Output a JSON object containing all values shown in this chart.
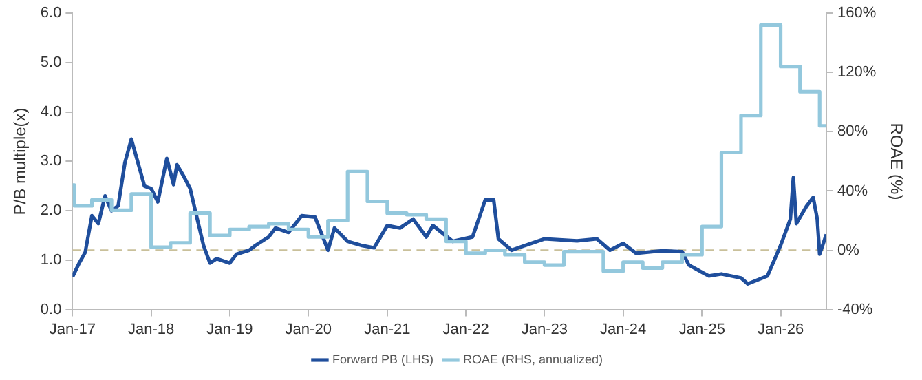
{
  "chart_data": {
    "type": "line",
    "ylabel": "P/B multiple(x)",
    "y2label": "ROAE (%)",
    "xlim": [
      "2017-01",
      "2026-08"
    ],
    "xticks": [
      {
        "value": "2017-01",
        "label": "Jan-17"
      },
      {
        "value": "2018-01",
        "label": "Jan-18"
      },
      {
        "value": "2019-01",
        "label": "Jan-19"
      },
      {
        "value": "2020-01",
        "label": "Jan-20"
      },
      {
        "value": "2021-01",
        "label": "Jan-21"
      },
      {
        "value": "2022-01",
        "label": "Jan-22"
      },
      {
        "value": "2023-01",
        "label": "Jan-23"
      },
      {
        "value": "2024-01",
        "label": "Jan-24"
      },
      {
        "value": "2025-01",
        "label": "Jan-25"
      },
      {
        "value": "2026-01",
        "label": "Jan-26"
      }
    ],
    "ylim": [
      0,
      6
    ],
    "yticks": [
      {
        "value": 0,
        "label": "0.0"
      },
      {
        "value": 1,
        "label": "1.0"
      },
      {
        "value": 2,
        "label": "2.0"
      },
      {
        "value": 3,
        "label": "3.0"
      },
      {
        "value": 4,
        "label": "4.0"
      },
      {
        "value": 5,
        "label": "5.0"
      },
      {
        "value": 6,
        "label": "6.0"
      }
    ],
    "y2lim": [
      -40,
      160
    ],
    "y2ticks": [
      {
        "value": -40,
        "label": "-40%"
      },
      {
        "value": 0,
        "label": "0%"
      },
      {
        "value": 40,
        "label": "40%"
      },
      {
        "value": 80,
        "label": "80%"
      },
      {
        "value": 120,
        "label": "120%"
      },
      {
        "value": 160,
        "label": "160%"
      }
    ],
    "series": [
      {
        "name": "Forward PB (LHS)",
        "type": "line",
        "color": "#1f4e9c",
        "x": [
          "2017-01",
          "2017-02",
          "2017-03",
          "2017-04",
          "2017-05",
          "2017-06",
          "2017-07",
          "2017-08",
          "2017-09",
          "2017-10",
          "2017-11",
          "2017-12",
          "2018-01",
          "2018-02",
          "2018-03-15",
          "2018-04-15",
          "2018-05",
          "2018-06",
          "2018-07",
          "2018-08",
          "2018-09",
          "2018-10",
          "2018-11",
          "2019-01",
          "2019-02",
          "2019-04",
          "2019-05",
          "2019-07",
          "2019-08",
          "2019-10",
          "2019-12",
          "2020-02",
          "2020-04",
          "2020-05",
          "2020-07",
          "2020-09",
          "2020-11",
          "2021-01",
          "2021-03",
          "2021-05",
          "2021-07",
          "2021-08",
          "2021-11",
          "2022-02",
          "2022-04",
          "2022-05-10",
          "2022-06",
          "2022-08",
          "2022-11",
          "2023-01",
          "2023-06",
          "2023-09",
          "2023-11",
          "2024-01",
          "2024-03",
          "2024-07",
          "2024-10",
          "2024-11",
          "2025-02",
          "2025-04",
          "2025-07",
          "2025-08",
          "2025-11",
          "2026-01",
          "2026-02-15",
          "2026-03-01",
          "2026-03-15",
          "2026-05",
          "2026-06",
          "2026-06-20",
          "2026-07",
          "2026-08"
        ],
        "values": [
          0.66,
          0.94,
          1.16,
          1.9,
          1.74,
          2.3,
          2.0,
          2.1,
          2.97,
          3.45,
          2.97,
          2.5,
          2.45,
          2.18,
          3.06,
          2.53,
          2.93,
          2.7,
          2.45,
          1.87,
          1.3,
          0.94,
          1.03,
          0.94,
          1.12,
          1.2,
          1.3,
          1.47,
          1.65,
          1.56,
          1.9,
          1.87,
          1.2,
          1.65,
          1.38,
          1.3,
          1.25,
          1.7,
          1.65,
          1.83,
          1.47,
          1.7,
          1.38,
          1.47,
          2.22,
          2.22,
          1.43,
          1.2,
          1.34,
          1.43,
          1.39,
          1.43,
          1.2,
          1.34,
          1.14,
          1.19,
          1.17,
          0.9,
          0.68,
          0.72,
          0.64,
          0.52,
          0.68,
          1.3,
          1.83,
          2.67,
          1.74,
          2.09,
          2.27,
          1.83,
          1.12,
          1.52
        ]
      },
      {
        "name": "ROAE (RHS, annualized)",
        "type": "step",
        "axis": "y2",
        "color": "#93c8dd",
        "x": [
          "2017-01",
          "2017-01-10",
          "2017-04",
          "2017-07",
          "2017-10",
          "2018-01",
          "2018-04",
          "2018-07",
          "2018-10",
          "2019-01",
          "2019-04",
          "2019-07",
          "2019-10",
          "2020-01",
          "2020-04",
          "2020-07",
          "2020-10",
          "2021-01",
          "2021-04",
          "2021-07",
          "2021-10",
          "2022-01",
          "2022-04",
          "2022-07",
          "2022-10",
          "2023-01",
          "2023-04",
          "2023-10",
          "2024-01",
          "2024-04",
          "2024-07",
          "2024-10",
          "2025-01",
          "2025-04",
          "2025-07",
          "2025-10",
          "2026-01",
          "2026-04",
          "2026-07",
          "2026-08"
        ],
        "values": [
          44,
          30,
          34,
          27,
          38,
          2,
          5,
          25,
          10,
          14,
          16,
          18,
          14,
          9,
          20,
          53,
          33,
          25,
          24,
          21,
          6,
          -2,
          0,
          -3,
          -8,
          -10,
          -1,
          -14,
          -8,
          -12,
          -8,
          -3,
          16,
          66,
          91,
          152,
          124,
          107,
          84,
          84
        ]
      }
    ],
    "ref_lines": [
      {
        "axis": "y2",
        "value": 0,
        "color": "#c9c09a",
        "line_style": "dashed"
      }
    ],
    "legend": "bottom"
  }
}
